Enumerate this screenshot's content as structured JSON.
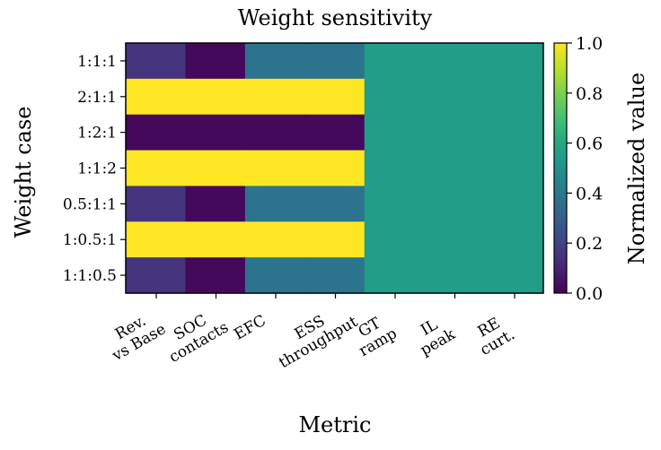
{
  "chart_data": {
    "type": "heatmap",
    "title": "Weight sensitivity",
    "xlabel": "Metric",
    "ylabel": "Weight case",
    "x_categories": [
      [
        "Rev.",
        "vs Base"
      ],
      [
        "SOC",
        "contacts"
      ],
      [
        "EFC"
      ],
      [
        "ESS",
        "throughput"
      ],
      [
        "GT",
        "ramp"
      ],
      [
        "IL",
        "peak"
      ],
      [
        "RE",
        "curt."
      ]
    ],
    "y_categories": [
      "1:1:1",
      "2:1:1",
      "1:2:1",
      "1:1:2",
      "0.5:1:1",
      "1:0.5:1",
      "1:1:0.5"
    ],
    "values": [
      [
        0.15,
        0.02,
        0.38,
        0.38,
        0.55,
        0.55,
        0.55
      ],
      [
        1.0,
        1.0,
        1.0,
        1.0,
        0.55,
        0.55,
        0.55
      ],
      [
        0.02,
        0.02,
        0.02,
        0.02,
        0.55,
        0.55,
        0.55
      ],
      [
        1.0,
        1.0,
        1.0,
        1.0,
        0.55,
        0.55,
        0.55
      ],
      [
        0.15,
        0.02,
        0.38,
        0.38,
        0.55,
        0.55,
        0.55
      ],
      [
        1.0,
        1.0,
        1.0,
        1.0,
        0.55,
        0.55,
        0.55
      ],
      [
        0.15,
        0.02,
        0.38,
        0.38,
        0.55,
        0.55,
        0.55
      ]
    ],
    "colorbar": {
      "label": "Normalized value",
      "range": [
        0,
        1
      ],
      "ticks": [
        "0.0",
        "0.2",
        "0.4",
        "0.6",
        "0.8",
        "1.0"
      ],
      "colormap": "viridis"
    }
  }
}
